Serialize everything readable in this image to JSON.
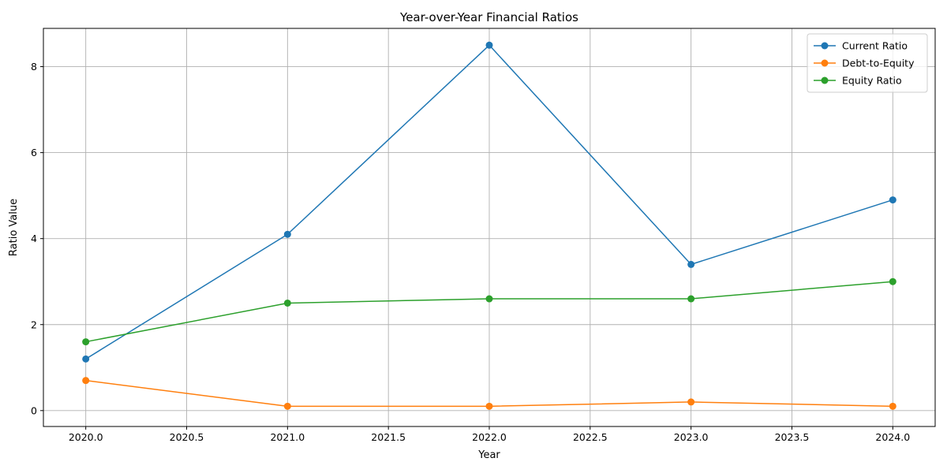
{
  "chart_data": {
    "type": "line",
    "title": "Year-over-Year Financial Ratios",
    "xlabel": "Year",
    "ylabel": "Ratio Value",
    "x": [
      2020,
      2021,
      2022,
      2023,
      2024
    ],
    "xlim": [
      2019.79,
      2024.21
    ],
    "ylim": [
      -0.37,
      8.89
    ],
    "xticks": [
      2020.0,
      2020.5,
      2021.0,
      2021.5,
      2022.0,
      2022.5,
      2023.0,
      2023.5,
      2024.0
    ],
    "xtick_labels": [
      "2020.0",
      "2020.5",
      "2021.0",
      "2021.5",
      "2022.0",
      "2022.5",
      "2023.0",
      "2023.5",
      "2024.0"
    ],
    "yticks": [
      0,
      2,
      4,
      6,
      8
    ],
    "ytick_labels": [
      "0",
      "2",
      "4",
      "6",
      "8"
    ],
    "grid": true,
    "legend_position": "top-right",
    "series": [
      {
        "name": "Current Ratio",
        "color": "#1f77b4",
        "values": [
          1.2,
          4.1,
          8.5,
          3.4,
          4.9
        ]
      },
      {
        "name": "Debt-to-Equity",
        "color": "#ff7f0e",
        "values": [
          0.7,
          0.1,
          0.1,
          0.2,
          0.1
        ]
      },
      {
        "name": "Equity Ratio",
        "color": "#2ca02c",
        "values": [
          1.6,
          2.5,
          2.6,
          2.6,
          3.0
        ]
      }
    ]
  }
}
